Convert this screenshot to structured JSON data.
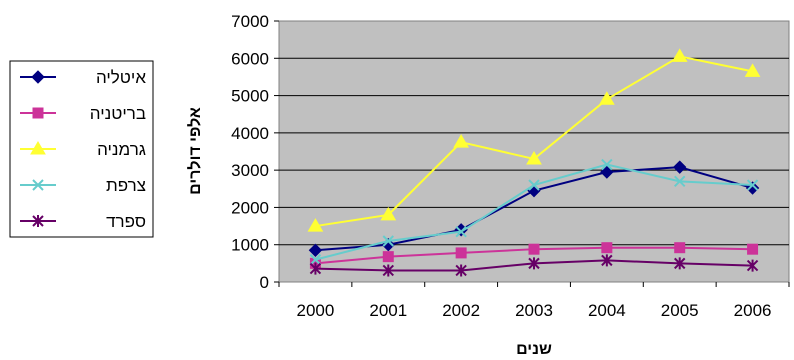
{
  "chart_data": {
    "type": "line",
    "title": "",
    "xlabel": "שנים",
    "ylabel": "אלפי דולרים",
    "x": [
      "2000",
      "2001",
      "2002",
      "2003",
      "2004",
      "2005",
      "2006"
    ],
    "ylim": [
      0,
      7000
    ],
    "yticks": [
      "0",
      "1000",
      "2000",
      "3000",
      "4000",
      "5000",
      "6000",
      "7000"
    ],
    "grid": true,
    "legend_position": "left",
    "plot_background": "#c0c0c0",
    "series": [
      {
        "name": "איטליה",
        "color": "#000080",
        "marker": "diamond",
        "values": [
          850,
          1000,
          1400,
          2450,
          2950,
          3080,
          2520
        ]
      },
      {
        "name": "בריטניה",
        "color": "#cc3399",
        "marker": "square",
        "values": [
          500,
          680,
          780,
          880,
          920,
          920,
          880
        ]
      },
      {
        "name": "גרמניה",
        "color": "#ffff33",
        "marker": "triangle",
        "values": [
          1500,
          1800,
          3750,
          3300,
          4900,
          6050,
          5650
        ]
      },
      {
        "name": "צרפת",
        "color": "#66cccc",
        "marker": "x",
        "values": [
          600,
          1100,
          1350,
          2600,
          3150,
          2700,
          2600
        ]
      },
      {
        "name": "ספרד",
        "color": "#660066",
        "marker": "star",
        "values": [
          360,
          310,
          310,
          500,
          580,
          500,
          440
        ]
      }
    ]
  }
}
